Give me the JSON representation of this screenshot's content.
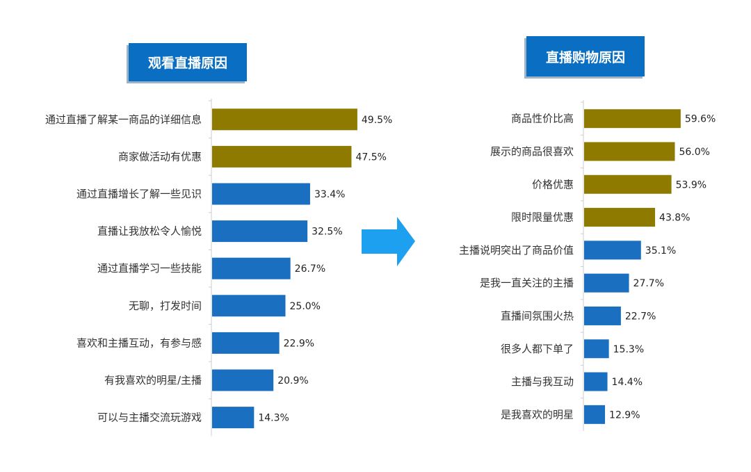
{
  "colors": {
    "highlight": "#8f7a00",
    "normal": "#1a6fc0",
    "arrow": "#1ea0f0",
    "title_bg": "#0a6fc2"
  },
  "arrow_icon": "arrow-right-icon",
  "chart_data": [
    {
      "type": "bar",
      "orientation": "horizontal",
      "title": "观看直播原因",
      "categories": [
        "通过直播了解某一商品的详细信息",
        "商家做活动有优惠",
        "通过直播增长了解一些见识",
        "直播让我放松令人愉悦",
        "通过直播学习一些技能",
        "无聊，打发时间",
        "喜欢和主播互动，有参与感",
        "有我喜欢的明星/主播",
        "可以与主播交流玩游戏"
      ],
      "values": [
        49.5,
        47.5,
        33.4,
        32.5,
        26.7,
        25.0,
        22.9,
        20.9,
        14.3
      ],
      "labels": [
        "49.5%",
        "47.5%",
        "33.4%",
        "32.5%",
        "26.7%",
        "25.0%",
        "22.9%",
        "20.9%",
        "14.3%"
      ],
      "highlighted_count": 2,
      "unit": "%"
    },
    {
      "type": "bar",
      "orientation": "horizontal",
      "title": "直播购物原因",
      "categories": [
        "商品性价比高",
        "展示的商品很喜欢",
        "价格优惠",
        "限时限量优惠",
        "主播说明突出了商品价值",
        "是我一直关注的主播",
        "直播间氛围火热",
        "很多人都下单了",
        "主播与我互动",
        "是我喜欢的明星"
      ],
      "values": [
        59.6,
        56.0,
        53.9,
        43.8,
        35.1,
        27.7,
        22.7,
        15.3,
        14.4,
        12.9
      ],
      "labels": [
        "59.6%",
        "56.0%",
        "53.9%",
        "43.8%",
        "35.1%",
        "27.7%",
        "22.7%",
        "15.3%",
        "14.4%",
        "12.9%"
      ],
      "highlighted_count": 4,
      "unit": "%"
    }
  ]
}
